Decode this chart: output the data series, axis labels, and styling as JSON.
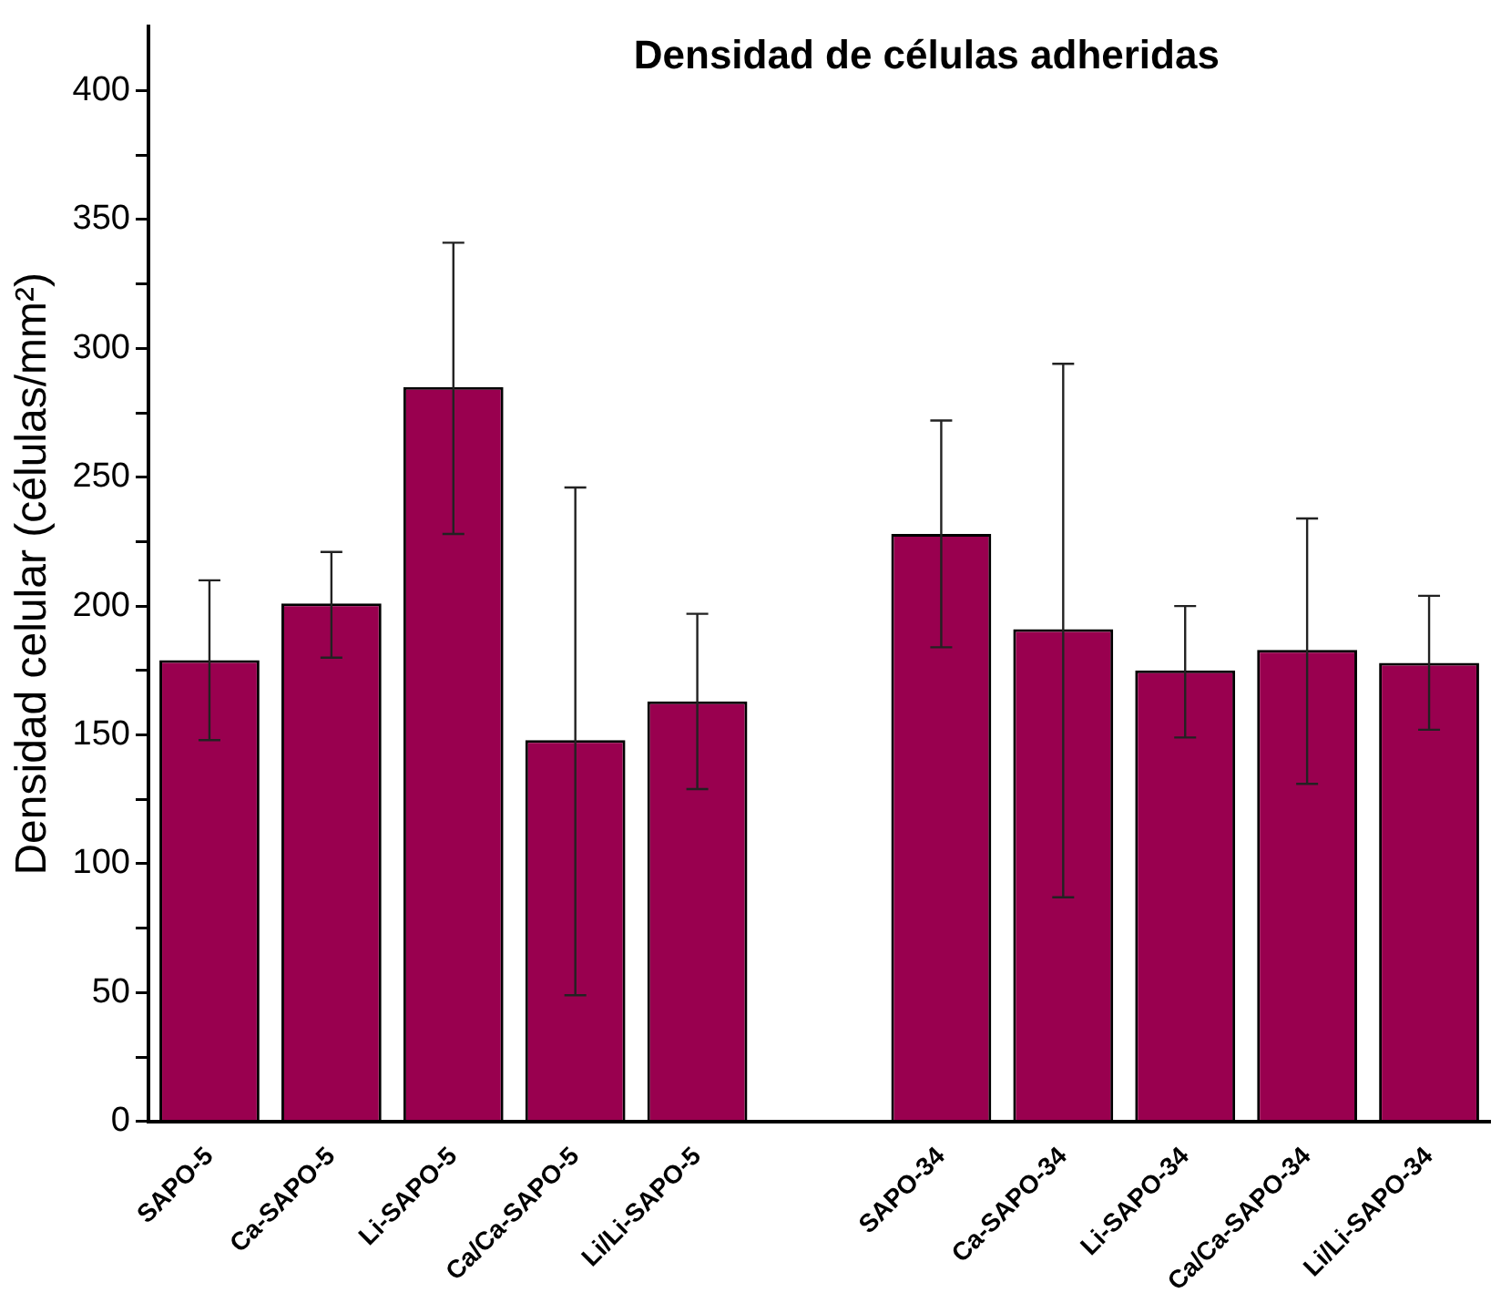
{
  "chart_data": {
    "type": "bar",
    "title": "Densidad de células adheridas",
    "ylabel": "Densidad celular (células/mm²)",
    "categories": [
      "SAPO-5",
      "Ca-SAPO-5",
      "Li-SAPO-5",
      "Ca/Ca-SAPO-5",
      "Li/Li-SAPO-5",
      null,
      "SAPO-34",
      "Ca-SAPO-34",
      "Li-SAPO-34",
      "Ca/Ca-SAPO-34",
      "Li/Li-SAPO-34"
    ],
    "values": [
      179,
      201,
      285,
      148,
      163,
      null,
      228,
      191,
      175,
      183,
      178
    ],
    "errors": [
      [
        148,
        210
      ],
      [
        180,
        221
      ],
      [
        228,
        341
      ],
      [
        49,
        246
      ],
      [
        129,
        197
      ],
      null,
      [
        184,
        272
      ],
      [
        87,
        294
      ],
      [
        149,
        200
      ],
      [
        131,
        234
      ],
      [
        152,
        204
      ]
    ],
    "color": "#99004f",
    "ylim": [
      0,
      425
    ],
    "yticks": [
      0,
      {
        "value": 25,
        "label": null
      },
      50,
      {
        "value": 75,
        "label": null
      },
      100,
      {
        "value": 125,
        "label": null
      },
      150,
      {
        "value": 175,
        "label": null
      },
      200,
      {
        "value": 225,
        "label": null
      },
      250,
      {
        "value": 275,
        "label": null
      },
      300,
      {
        "value": 325,
        "label": null
      },
      350,
      {
        "value": 375,
        "label": null
      },
      400
    ],
    "grid": false,
    "legend": false
  }
}
